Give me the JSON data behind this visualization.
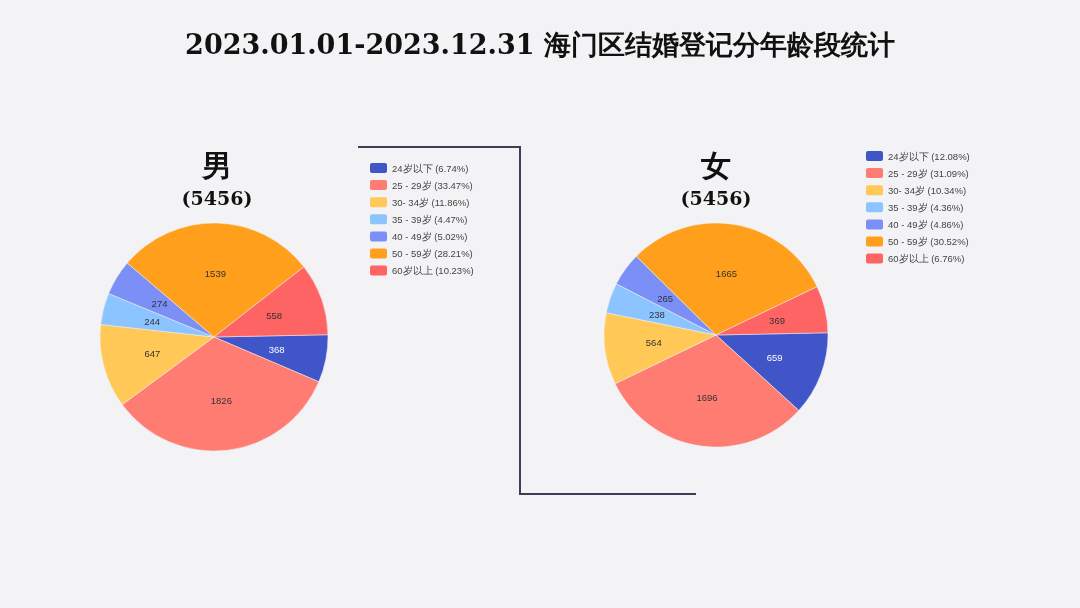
{
  "chart_data": [
    {
      "type": "pie",
      "title": "男",
      "subtitle": "(5456)",
      "annotations": [
        "2023.01.01-2023.12.31 海门区结婚登记分年龄段统计"
      ],
      "categories": [
        "24岁以下 (6.74%)",
        "25 - 29岁 (33.47%)",
        "30- 34岁 (11.86%)",
        "35 - 39岁 (4.47%)",
        "40 - 49岁 (5.02%)",
        "50 - 59岁 (28.21%)",
        "60岁以上 (10.23%)"
      ],
      "values": [
        368,
        1826,
        647,
        244,
        274,
        1539,
        558
      ],
      "colors": [
        "#4055c8",
        "#ff7c72",
        "#ffc857",
        "#8cc4ff",
        "#7b8ff7",
        "#ff9f1c",
        "#ff6464"
      ],
      "data_labels": true,
      "legend": "right"
    },
    {
      "type": "pie",
      "title": "女",
      "subtitle": "(5456)",
      "categories": [
        "24岁以下 (12.08%)",
        "25 - 29岁 (31.09%)",
        "30- 34岁 (10.34%)",
        "35 - 39岁 (4.36%)",
        "40 - 49岁 (4.86%)",
        "50 - 59岁 (30.52%)",
        "60岁以上 (6.76%)"
      ],
      "values": [
        659,
        1696,
        564,
        238,
        265,
        1665,
        369
      ],
      "colors": [
        "#4055c8",
        "#ff7c72",
        "#ffc857",
        "#8cc4ff",
        "#7b8ff7",
        "#ff9f1c",
        "#ff6464"
      ],
      "data_labels": true,
      "legend": "right"
    }
  ]
}
